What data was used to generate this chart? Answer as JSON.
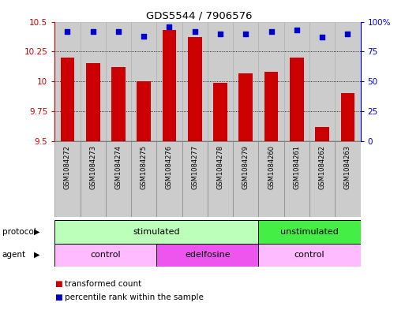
{
  "title": "GDS5544 / 7906576",
  "samples": [
    "GSM1084272",
    "GSM1084273",
    "GSM1084274",
    "GSM1084275",
    "GSM1084276",
    "GSM1084277",
    "GSM1084278",
    "GSM1084279",
    "GSM1084260",
    "GSM1084261",
    "GSM1084262",
    "GSM1084263"
  ],
  "bar_values": [
    10.2,
    10.15,
    10.12,
    10.0,
    10.43,
    10.37,
    9.99,
    10.07,
    10.08,
    10.2,
    9.62,
    9.9
  ],
  "percentile_values": [
    92,
    92,
    92,
    88,
    96,
    92,
    90,
    90,
    92,
    93,
    87,
    90
  ],
  "ylim_left": [
    9.5,
    10.5
  ],
  "ylim_right": [
    0,
    100
  ],
  "yticks_left": [
    9.5,
    9.75,
    10.0,
    10.25,
    10.5
  ],
  "ytick_labels_left": [
    "9.5",
    "9.75",
    "10",
    "10.25",
    "10.5"
  ],
  "yticks_right": [
    0,
    25,
    50,
    75,
    100
  ],
  "ytick_labels_right": [
    "0",
    "25",
    "50",
    "75",
    "100%"
  ],
  "bar_color": "#cc0000",
  "dot_color": "#0000cc",
  "bar_width": 0.55,
  "protocol_groups": [
    {
      "label": "stimulated",
      "start": 0,
      "end": 8,
      "color": "#bbffbb"
    },
    {
      "label": "unstimulated",
      "start": 8,
      "end": 12,
      "color": "#44ee44"
    }
  ],
  "agent_groups": [
    {
      "label": "control",
      "start": 0,
      "end": 4,
      "color": "#ffbbff"
    },
    {
      "label": "edelfosine",
      "start": 4,
      "end": 8,
      "color": "#ee55ee"
    },
    {
      "label": "control",
      "start": 8,
      "end": 12,
      "color": "#ffbbff"
    }
  ],
  "legend_items": [
    {
      "label": "transformed count",
      "color": "#cc0000"
    },
    {
      "label": "percentile rank within the sample",
      "color": "#0000cc"
    }
  ],
  "bg_color": "#ffffff",
  "tick_color_left": "#cc0000",
  "tick_color_right": "#0000cc",
  "gray_col_color": "#cccccc",
  "gray_col_edge": "#aaaaaa"
}
